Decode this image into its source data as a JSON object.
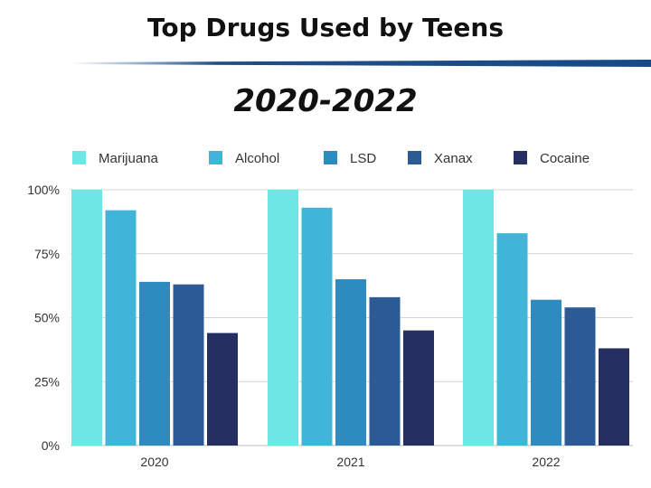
{
  "chart_data": {
    "type": "bar",
    "title": "Top Drugs Used by Teens",
    "subtitle": "2020-2022",
    "categories": [
      "2020",
      "2021",
      "2022"
    ],
    "series": [
      {
        "name": "Marijuana",
        "color": "#6ee6e6",
        "values": [
          100,
          100,
          100
        ]
      },
      {
        "name": "Alcohol",
        "color": "#41b5d8",
        "values": [
          92,
          93,
          83
        ]
      },
      {
        "name": "LSD",
        "color": "#2e8bc0",
        "values": [
          64,
          65,
          57
        ]
      },
      {
        "name": "Xanax",
        "color": "#2b5a94",
        "values": [
          63,
          58,
          54
        ]
      },
      {
        "name": "Cocaine",
        "color": "#262f62",
        "values": [
          44,
          45,
          38
        ]
      }
    ],
    "ylim": [
      0,
      100
    ],
    "yticks": [
      "0%",
      "25%",
      "50%",
      "75%",
      "100%"
    ],
    "ytick_values": [
      0,
      25,
      50,
      75,
      100
    ],
    "grid": true,
    "legend_position": "top"
  }
}
